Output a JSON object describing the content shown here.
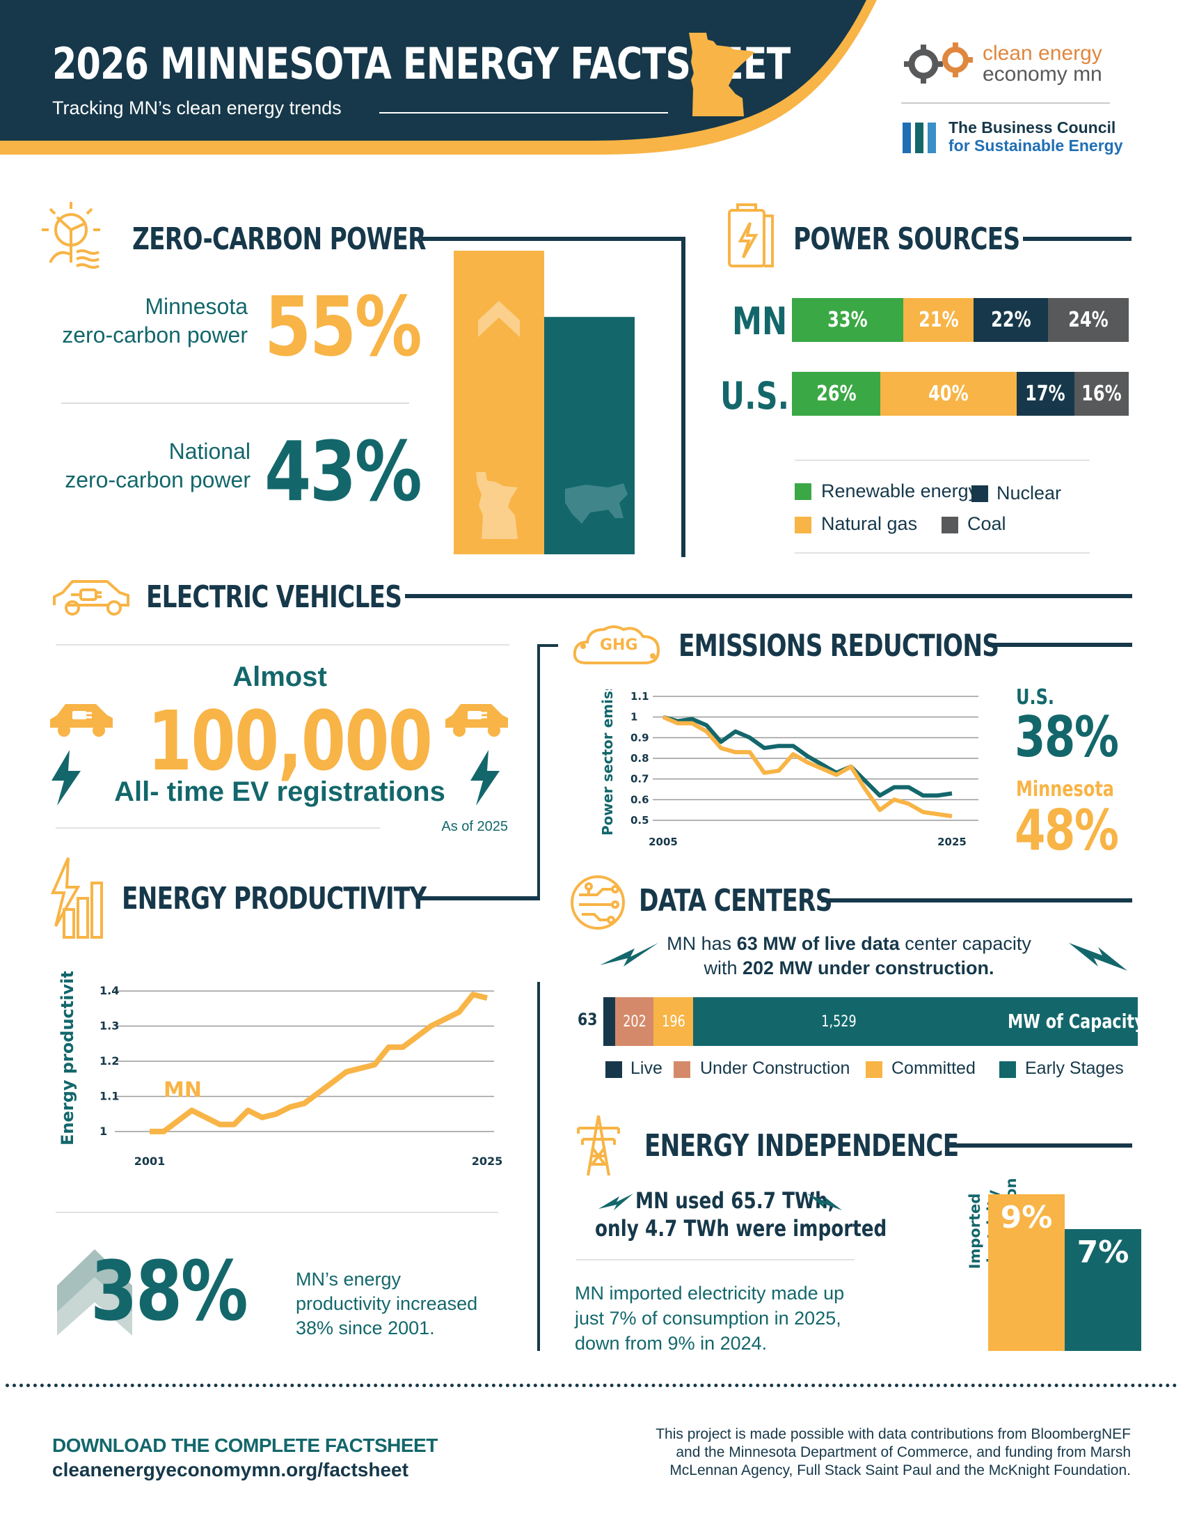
{
  "header": {
    "title": "2026 MINNESOTA ENERGY FACTSHEET",
    "subtitle": "Tracking MN’s clean energy trends",
    "logo1_line1": "clean energy",
    "logo1_line2": "economy mn",
    "logo2_line1": "The Business Council",
    "logo2_line2": "for Sustainable Energy"
  },
  "colors": {
    "navy": "#16384a",
    "teal": "#13676b",
    "orange": "#f8b446",
    "green": "#3aa845",
    "gray": "#58595b",
    "tan": "#d48a6a"
  },
  "zero_carbon": {
    "title": "ZERO-CARBON POWER",
    "mn_label_1": "Minnesota",
    "mn_label_2": "zero-carbon power",
    "mn_value": "55%",
    "us_label_1": "National",
    "us_label_2": "zero-carbon power",
    "us_value": "43%",
    "icon": "wind-turbine-icon"
  },
  "power_sources": {
    "title": "POWER SOURCES",
    "icon": "battery-icon",
    "rows": [
      {
        "label": "MN",
        "segments": [
          "33%",
          "21%",
          "22%",
          "24%"
        ]
      },
      {
        "label": "U.S.",
        "segments": [
          "26%",
          "40%",
          "17%",
          "16%"
        ]
      }
    ],
    "legend": [
      "Renewable energy",
      "Nuclear",
      "Natural gas",
      "Coal"
    ]
  },
  "ev": {
    "title": "ELECTRIC VEHICLES",
    "icon": "car-plug-icon",
    "almost": "Almost",
    "number": "100,000",
    "caption": "All- time EV registrations",
    "asof": "As of 2025"
  },
  "emissions": {
    "title": "EMISSIONS REDUCTIONS",
    "icon": "ghg-cloud-icon",
    "icon_text": "GHG",
    "ylabel": "Power sector emissions",
    "us_label": "U.S.",
    "us_value": "38%",
    "mn_label": "Minnesota",
    "mn_value": "48%"
  },
  "productivity": {
    "title": "ENERGY PRODUCTIVITY",
    "icon": "productivity-bars-icon",
    "ylabel": "Energy productivity",
    "series_label": "MN",
    "big_value": "38%",
    "desc_1": "MN’s energy",
    "desc_2": "productivity increased",
    "desc_3": "38% since 2001."
  },
  "data_centers": {
    "title": "DATA CENTERS",
    "icon": "circuit-icon",
    "line1_a": "MN has ",
    "line1_b": "63 MW of live data",
    "line1_c": " center capacity",
    "line2_a": "with ",
    "line2_b": "202 MW under construction.",
    "bar_first_label": "63",
    "bar_segments": [
      "202",
      "196",
      "1,529"
    ],
    "bar_unit": "MW of Capacity",
    "legend": [
      "Live",
      "Under Construction",
      "Committed",
      "Early Stages"
    ]
  },
  "independence": {
    "title": "ENERGY INDEPENDENCE",
    "icon": "transmission-tower-icon",
    "stat_1": "MN used 65.7 TWh,",
    "stat_2": "only 4.7 TWh were imported",
    "desc_1": "MN imported electricity made up",
    "desc_2": "just 7% of consumption in 2025,",
    "desc_3": "down from 9% in 2024.",
    "ylabel_1": "Imported electricity",
    "ylabel_2": "consumption",
    "bar_2024": "9%",
    "bar_2025": "7%"
  },
  "footer": {
    "cta_1": "DOWNLOAD THE COMPLETE FACTSHEET",
    "cta_2": "cleanenergyeconomymn.org/factsheet",
    "credit_1": "This project is made possible with data contributions from BloombergNEF",
    "credit_2": "and the Minnesota Department of Commerce, and funding from Marsh",
    "credit_3": "McLennan Agency, Full Stack Saint Paul and the McKnight Foundation."
  },
  "chart_data": [
    {
      "type": "bar",
      "title": "",
      "categories": [
        "Minnesota",
        "National"
      ],
      "values": [
        55,
        43
      ],
      "ylim": [
        0,
        60
      ]
    },
    {
      "type": "bar",
      "title": "",
      "stacked": true,
      "horizontal": true,
      "categories": [
        "MN",
        "U.S."
      ],
      "series": [
        {
          "name": "Renewable energy",
          "values": [
            33,
            26
          ]
        },
        {
          "name": "Natural gas",
          "values": [
            21,
            40
          ]
        },
        {
          "name": "Nuclear",
          "values": [
            22,
            17
          ]
        },
        {
          "name": "Coal",
          "values": [
            24,
            16
          ]
        }
      ]
    },
    {
      "type": "line",
      "title": "",
      "ylabel": "Power sector emissions",
      "x_tick_labels": [
        "2005",
        "2025"
      ],
      "y_ticks": [
        "1.1",
        "1",
        "0.9",
        "0.8",
        "0.7",
        "0.6",
        "0.5"
      ],
      "ylim": [
        0.5,
        1.1
      ],
      "x": [
        2005,
        2006,
        2007,
        2008,
        2009,
        2010,
        2011,
        2012,
        2013,
        2014,
        2015,
        2016,
        2017,
        2018,
        2019,
        2020,
        2021,
        2022,
        2023,
        2024,
        2025
      ],
      "series": [
        {
          "values": [
            1.0,
            0.98,
            0.99,
            0.96,
            0.88,
            0.93,
            0.9,
            0.85,
            0.86,
            0.86,
            0.81,
            0.77,
            0.73,
            0.76,
            0.69,
            0.62,
            0.66,
            0.66,
            0.62,
            0.62,
            0.63
          ]
        },
        {
          "values": [
            1.0,
            0.97,
            0.97,
            0.93,
            0.85,
            0.83,
            0.83,
            0.73,
            0.74,
            0.82,
            0.78,
            0.75,
            0.72,
            0.76,
            0.65,
            0.55,
            0.6,
            0.58,
            0.54,
            0.53,
            0.52
          ]
        }
      ]
    },
    {
      "type": "line",
      "title": "",
      "ylabel": "Energy productivity",
      "x_tick_labels": [
        "2001",
        "2025"
      ],
      "y_ticks": [
        "1.4",
        "1.3",
        "1.2",
        "1.1",
        "1"
      ],
      "ylim": [
        0.98,
        1.42
      ],
      "x": [
        2001,
        2002,
        2003,
        2004,
        2005,
        2006,
        2007,
        2008,
        2009,
        2010,
        2011,
        2012,
        2013,
        2014,
        2015,
        2016,
        2017,
        2018,
        2019,
        2020,
        2021,
        2022,
        2023,
        2024,
        2025
      ],
      "series": [
        {
          "name": "MN",
          "values": [
            1.0,
            1.0,
            1.03,
            1.06,
            1.04,
            1.02,
            1.02,
            1.06,
            1.04,
            1.05,
            1.07,
            1.08,
            1.11,
            1.14,
            1.17,
            1.18,
            1.19,
            1.24,
            1.24,
            1.27,
            1.3,
            1.32,
            1.34,
            1.39,
            1.38
          ]
        }
      ]
    },
    {
      "type": "bar",
      "title": "",
      "stacked": true,
      "horizontal": true,
      "xlabel": "MW of Capacity",
      "categories": [
        "Data centers"
      ],
      "series": [
        {
          "name": "Live",
          "values": [
            63
          ]
        },
        {
          "name": "Under Construction",
          "values": [
            202
          ]
        },
        {
          "name": "Committed",
          "values": [
            196
          ]
        },
        {
          "name": "Early Stages",
          "values": [
            1529
          ]
        }
      ]
    },
    {
      "type": "bar",
      "title": "",
      "ylabel": "Imported electricity consumption",
      "categories": [
        "2024",
        "2025"
      ],
      "values": [
        9,
        7
      ]
    }
  ]
}
